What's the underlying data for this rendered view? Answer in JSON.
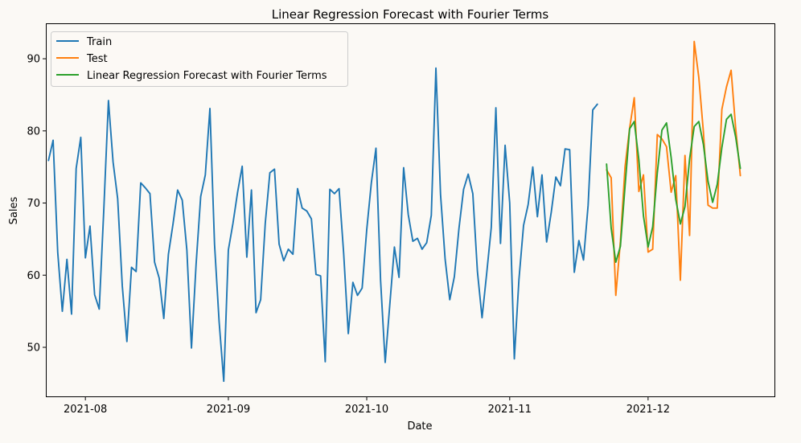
{
  "chart_data": {
    "type": "line",
    "title": "Linear Regression Forecast with Fourier Terms",
    "xlabel": "Date",
    "ylabel": "Sales",
    "xlim": [
      -8.4,
      149.4
    ],
    "ylim": [
      43.2,
      94.8
    ],
    "x_ticks": [
      {
        "label": "2021-08",
        "day": 0
      },
      {
        "label": "2021-09",
        "day": 31
      },
      {
        "label": "2021-10",
        "day": 61
      },
      {
        "label": "2021-11",
        "day": 92
      },
      {
        "label": "2021-12",
        "day": 122
      }
    ],
    "y_ticks": [
      50,
      60,
      70,
      80,
      90
    ],
    "legend_position": "top-left",
    "series": [
      {
        "name": "Train",
        "color": "#1f77b4",
        "start_day": -8,
        "values": [
          75.9,
          78.7,
          63.2,
          55.0,
          62.2,
          54.6,
          74.8,
          79.1,
          62.4,
          66.8,
          57.3,
          55.3,
          69.2,
          84.2,
          75.7,
          70.6,
          58.5,
          50.8,
          61.1,
          60.5,
          72.8,
          72.1,
          71.3,
          61.8,
          59.6,
          54.0,
          62.9,
          67.1,
          71.8,
          70.4,
          63.5,
          49.9,
          61.5,
          70.9,
          73.9,
          83.1,
          64.3,
          53.5,
          45.3,
          63.5,
          67.2,
          71.5,
          75.1,
          62.5,
          71.8,
          54.8,
          56.6,
          67.2,
          74.2,
          74.7,
          64.3,
          62.0,
          63.6,
          62.9,
          72.0,
          69.3,
          68.9,
          67.8,
          60.1,
          59.9,
          48.0,
          71.9,
          71.3,
          72.0,
          63.0,
          51.9,
          59.0,
          57.2,
          58.2,
          66.3,
          72.8,
          77.6,
          59.3,
          47.9,
          55.9,
          63.9,
          59.7,
          74.9,
          68.4,
          64.7,
          65.1,
          63.6,
          64.5,
          68.3,
          88.7,
          71.2,
          62.2,
          56.6,
          59.8,
          66.5,
          71.9,
          74.0,
          71.3,
          60.5,
          54.1,
          60.2,
          66.6,
          83.2,
          64.4,
          78.0,
          70.0,
          48.4,
          59.4,
          66.9,
          69.8,
          75.0,
          68.1,
          73.9,
          64.6,
          68.7,
          73.6,
          72.4,
          77.5,
          77.4,
          60.4,
          64.8,
          62.1,
          69.7,
          82.9,
          83.7
        ]
      },
      {
        "name": "Test",
        "color": "#ff7f0e",
        "start_day": 113,
        "values": [
          74.6,
          73.5,
          57.2,
          64.7,
          75.0,
          80.4,
          84.6,
          71.6,
          73.9,
          63.2,
          63.6,
          79.5,
          78.9,
          77.8,
          71.5,
          73.8,
          59.3,
          76.6,
          65.5,
          92.4,
          87.4,
          79.8,
          69.7,
          69.3,
          69.3,
          83.0,
          86.1,
          88.4,
          80.3,
          73.8
        ]
      },
      {
        "name": "Linear Regression Forecast with Fourier Terms",
        "color": "#2ca02c",
        "start_day": 113,
        "values": [
          75.4,
          66.5,
          61.8,
          64.0,
          72.3,
          80.3,
          81.3,
          76.0,
          68.2,
          63.9,
          66.7,
          74.2,
          80.1,
          81.1,
          76.3,
          70.5,
          67.1,
          69.5,
          76.1,
          80.6,
          81.3,
          78.1,
          73.0,
          70.1,
          72.6,
          77.7,
          81.6,
          82.3,
          79.1,
          74.8
        ]
      }
    ]
  }
}
